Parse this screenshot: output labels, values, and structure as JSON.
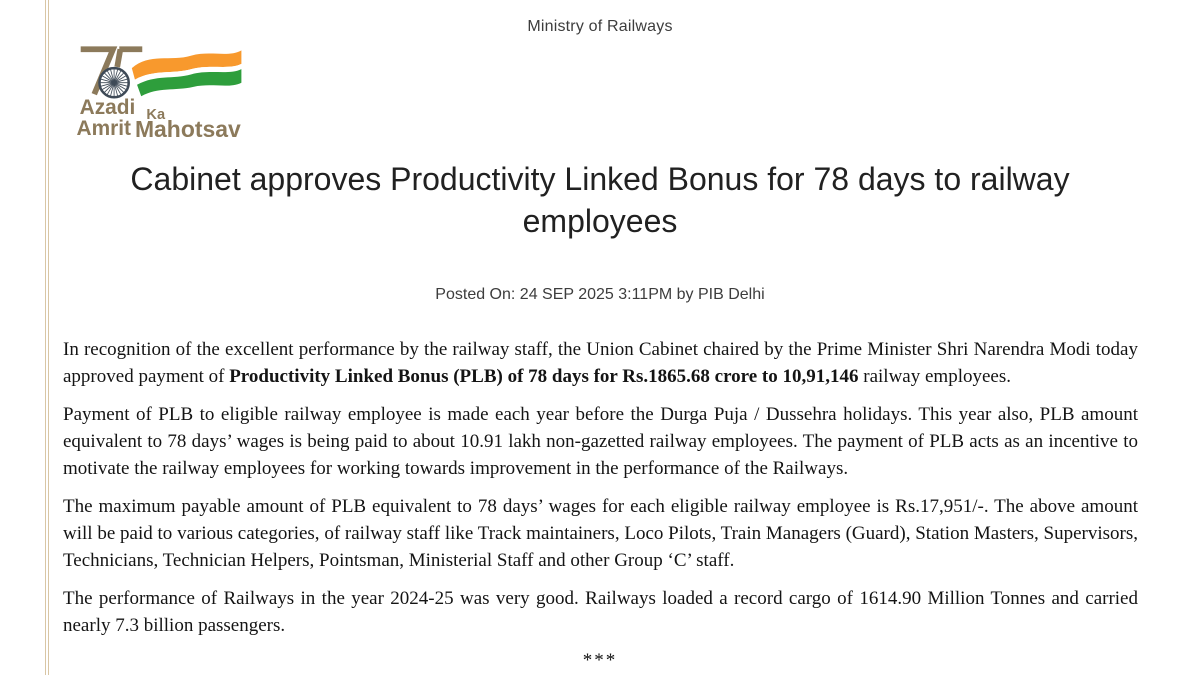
{
  "page": {
    "ministry": "Ministry of Railways",
    "title": "Cabinet approves Productivity Linked Bonus for 78 days to railway employees",
    "posted_on": "Posted On: 24 SEP 2025 3:11PM by PIB Delhi",
    "end_marker": "***"
  },
  "logo": {
    "numeral": "75",
    "word1": "Azadi",
    "word2": "Ka",
    "word3": "Amrit",
    "word4": "Mahotsav",
    "colors": {
      "tan": "#8C7A5B",
      "flag_saffron": "#F8992D",
      "flag_green": "#2E9E3C",
      "chakra": "#3E4A57",
      "left_rule": "#d9c6a4"
    }
  },
  "body": {
    "paragraphs": [
      {
        "segments": [
          {
            "t": "In recognition of the excellent performance by the railway staff, the Union Cabinet chaired by the Prime Minister Shri Narendra Modi today approved payment of ",
            "b": false
          },
          {
            "t": "Productivity Linked Bonus (PLB) of 78 days for Rs.1865.68 crore to 10,91,146",
            "b": true
          },
          {
            "t": " railway employees.",
            "b": false
          }
        ]
      },
      {
        "segments": [
          {
            "t": "Payment of PLB to eligible railway employee is made each year before the Durga Puja / Dussehra holidays.  This year also, PLB amount equivalent to 78 days’ wages is being paid to about 10.91 lakh non-gazetted railway employees.  The payment of PLB acts as an incentive to motivate the railway employees for working towards improvement in the performance of the Railways.",
            "b": false
          }
        ]
      },
      {
        "segments": [
          {
            "t": "The maximum payable amount of PLB equivalent to 78 days’ wages for each eligible railway employee is Rs.17,951/-.  The above amount will be paid to various categories, of railway staff like Track maintainers, Loco Pilots, Train Managers (Guard), Station Masters, Supervisors, Technicians, Technician Helpers, Pointsman, Ministerial Staff and other Group ‘C’ staff.",
            "b": false
          }
        ]
      },
      {
        "segments": [
          {
            "t": "The performance of Railways in the year 2024-25 was very good.  Railways loaded a record cargo of 1614.90 Million Tonnes and carried nearly 7.3 billion passengers.",
            "b": false
          }
        ]
      }
    ]
  }
}
